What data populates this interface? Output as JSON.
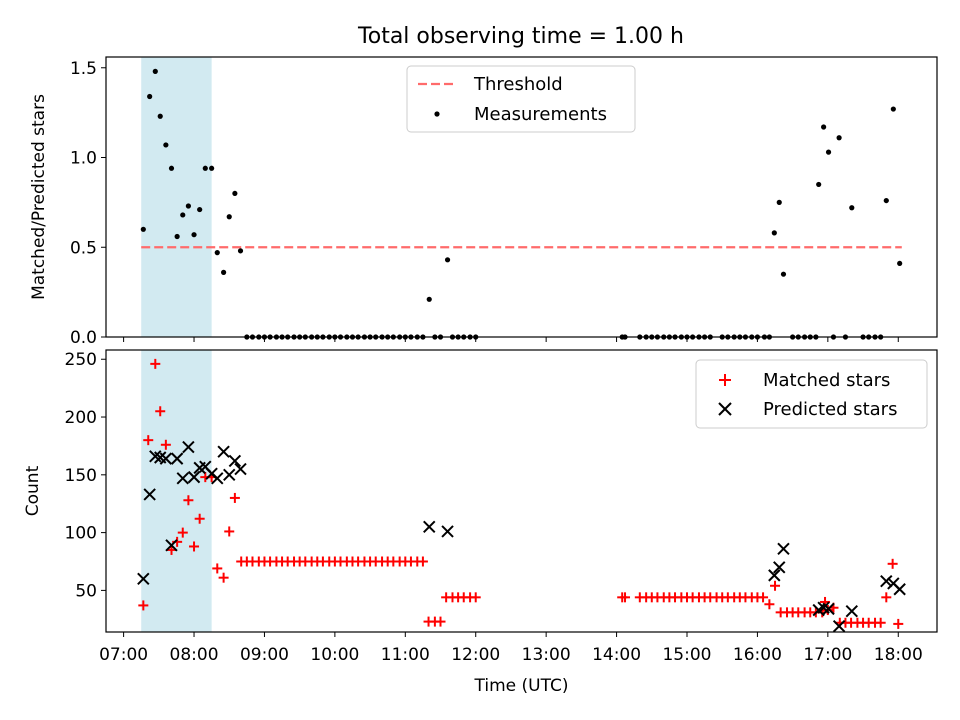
{
  "figure_title": "Total observing time = 1.00 h",
  "colors": {
    "threshold": "#ff6b6b",
    "measurement": "#000000",
    "matched": "#ff0000",
    "predicted": "#000000",
    "shade": "#add8e6"
  },
  "chart_data": [
    {
      "type": "scatter",
      "panel": "top",
      "title": "Total observing time = 1.00 h",
      "xlabel": "",
      "ylabel": "Matched/Predicted stars",
      "xlim": [
        6.75,
        18.55
      ],
      "ylim": [
        0,
        1.56
      ],
      "yticks": [
        0.0,
        0.5,
        1.0,
        1.5
      ],
      "ytick_labels": [
        "0.0",
        "0.5",
        "1.0",
        "1.5"
      ],
      "shaded_x_range": [
        7.25,
        8.25
      ],
      "legend": {
        "placement": "top-center",
        "entries": [
          "Threshold",
          "Measurements"
        ]
      },
      "threshold": {
        "name": "Threshold",
        "y": 0.5,
        "x_range": [
          7.25,
          18.05
        ]
      },
      "series": [
        {
          "name": "Measurements",
          "points": [
            [
              7.28,
              0.6
            ],
            [
              7.37,
              1.34
            ],
            [
              7.45,
              1.48
            ],
            [
              7.52,
              1.23
            ],
            [
              7.6,
              1.07
            ],
            [
              7.68,
              0.94
            ],
            [
              7.76,
              0.56
            ],
            [
              7.84,
              0.68
            ],
            [
              7.92,
              0.73
            ],
            [
              8.0,
              0.57
            ],
            [
              8.08,
              0.71
            ],
            [
              8.16,
              0.94
            ],
            [
              8.25,
              0.94
            ],
            [
              8.33,
              0.47
            ],
            [
              8.42,
              0.36
            ],
            [
              8.5,
              0.67
            ],
            [
              8.58,
              0.8
            ],
            [
              8.66,
              0.48
            ],
            [
              8.75,
              0
            ],
            [
              8.83,
              0
            ],
            [
              8.92,
              0
            ],
            [
              9.0,
              0
            ],
            [
              9.08,
              0
            ],
            [
              9.17,
              0
            ],
            [
              9.25,
              0
            ],
            [
              9.33,
              0
            ],
            [
              9.42,
              0
            ],
            [
              9.5,
              0
            ],
            [
              9.58,
              0
            ],
            [
              9.67,
              0
            ],
            [
              9.75,
              0
            ],
            [
              9.83,
              0
            ],
            [
              9.92,
              0
            ],
            [
              10.0,
              0
            ],
            [
              10.08,
              0
            ],
            [
              10.17,
              0
            ],
            [
              10.25,
              0
            ],
            [
              10.33,
              0
            ],
            [
              10.42,
              0
            ],
            [
              10.5,
              0
            ],
            [
              10.58,
              0
            ],
            [
              10.67,
              0
            ],
            [
              10.75,
              0
            ],
            [
              10.83,
              0
            ],
            [
              10.92,
              0
            ],
            [
              11.0,
              0
            ],
            [
              11.08,
              0
            ],
            [
              11.17,
              0
            ],
            [
              11.25,
              0
            ],
            [
              11.34,
              0.21
            ],
            [
              11.42,
              0
            ],
            [
              11.5,
              0
            ],
            [
              11.6,
              0.43
            ],
            [
              11.67,
              0
            ],
            [
              11.75,
              0
            ],
            [
              11.83,
              0
            ],
            [
              11.92,
              0
            ],
            [
              12.0,
              0
            ],
            [
              14.08,
              0
            ],
            [
              14.12,
              0
            ],
            [
              14.33,
              0
            ],
            [
              14.42,
              0
            ],
            [
              14.5,
              0
            ],
            [
              14.58,
              0
            ],
            [
              14.67,
              0
            ],
            [
              14.75,
              0
            ],
            [
              14.83,
              0
            ],
            [
              14.92,
              0
            ],
            [
              15.0,
              0
            ],
            [
              15.08,
              0
            ],
            [
              15.17,
              0
            ],
            [
              15.25,
              0
            ],
            [
              15.33,
              0
            ],
            [
              15.5,
              0
            ],
            [
              15.58,
              0
            ],
            [
              15.67,
              0
            ],
            [
              15.75,
              0
            ],
            [
              15.83,
              0
            ],
            [
              15.92,
              0
            ],
            [
              16.0,
              0
            ],
            [
              16.1,
              0
            ],
            [
              16.17,
              0
            ],
            [
              16.24,
              0.58
            ],
            [
              16.31,
              0.75
            ],
            [
              16.37,
              0.35
            ],
            [
              16.5,
              0
            ],
            [
              16.58,
              0
            ],
            [
              16.67,
              0
            ],
            [
              16.75,
              0
            ],
            [
              16.83,
              0
            ],
            [
              16.87,
              0.85
            ],
            [
              16.94,
              1.17
            ],
            [
              17.01,
              1.03
            ],
            [
              17.08,
              0
            ],
            [
              17.16,
              1.11
            ],
            [
              17.25,
              0
            ],
            [
              17.34,
              0.72
            ],
            [
              17.5,
              0
            ],
            [
              17.58,
              0
            ],
            [
              17.67,
              0
            ],
            [
              17.75,
              0
            ],
            [
              17.83,
              0.76
            ],
            [
              17.93,
              1.27
            ],
            [
              18.02,
              0.41
            ]
          ]
        }
      ]
    },
    {
      "type": "scatter",
      "panel": "bottom",
      "xlabel": "Time (UTC)",
      "ylabel": "Count",
      "xlim": [
        6.75,
        18.55
      ],
      "ylim": [
        14,
        258
      ],
      "yticks": [
        50,
        100,
        150,
        200,
        250
      ],
      "ytick_labels": [
        "50",
        "100",
        "150",
        "200",
        "250"
      ],
      "xticks": [
        7,
        8,
        9,
        10,
        11,
        12,
        13,
        14,
        15,
        16,
        17,
        18
      ],
      "xtick_labels": [
        "07:00",
        "08:00",
        "09:00",
        "10:00",
        "11:00",
        "12:00",
        "13:00",
        "14:00",
        "15:00",
        "16:00",
        "17:00",
        "18:00"
      ],
      "shaded_x_range": [
        7.25,
        8.25
      ],
      "legend": {
        "placement": "top-right",
        "entries": [
          "Matched stars",
          "Predicted stars"
        ]
      },
      "series": [
        {
          "name": "Matched stars",
          "marker": "+",
          "points": [
            [
              7.28,
              37
            ],
            [
              7.35,
              180
            ],
            [
              7.45,
              246
            ],
            [
              7.52,
              205
            ],
            [
              7.6,
              176
            ],
            [
              7.68,
              85
            ],
            [
              7.76,
              92
            ],
            [
              7.84,
              100
            ],
            [
              7.92,
              128
            ],
            [
              8.0,
              88
            ],
            [
              8.08,
              112
            ],
            [
              8.16,
              148
            ],
            [
              8.25,
              148
            ],
            [
              8.33,
              69
            ],
            [
              8.42,
              61
            ],
            [
              8.5,
              101
            ],
            [
              8.58,
              130
            ],
            [
              8.67,
              75
            ],
            [
              8.75,
              75
            ],
            [
              8.83,
              75
            ],
            [
              8.92,
              75
            ],
            [
              9.0,
              75
            ],
            [
              9.08,
              75
            ],
            [
              9.17,
              75
            ],
            [
              9.25,
              75
            ],
            [
              9.33,
              75
            ],
            [
              9.42,
              75
            ],
            [
              9.5,
              75
            ],
            [
              9.58,
              75
            ],
            [
              9.67,
              75
            ],
            [
              9.75,
              75
            ],
            [
              9.83,
              75
            ],
            [
              9.92,
              75
            ],
            [
              10.0,
              75
            ],
            [
              10.08,
              75
            ],
            [
              10.17,
              75
            ],
            [
              10.25,
              75
            ],
            [
              10.33,
              75
            ],
            [
              10.42,
              75
            ],
            [
              10.5,
              75
            ],
            [
              10.58,
              75
            ],
            [
              10.67,
              75
            ],
            [
              10.75,
              75
            ],
            [
              10.83,
              75
            ],
            [
              10.92,
              75
            ],
            [
              11.0,
              75
            ],
            [
              11.08,
              75
            ],
            [
              11.17,
              75
            ],
            [
              11.25,
              75
            ],
            [
              11.33,
              23
            ],
            [
              11.42,
              23
            ],
            [
              11.5,
              23
            ],
            [
              11.58,
              44
            ],
            [
              11.67,
              44
            ],
            [
              11.75,
              44
            ],
            [
              11.83,
              44
            ],
            [
              11.92,
              44
            ],
            [
              12.0,
              44
            ],
            [
              14.08,
              44
            ],
            [
              14.12,
              44
            ],
            [
              14.33,
              44
            ],
            [
              14.42,
              44
            ],
            [
              14.5,
              44
            ],
            [
              14.58,
              44
            ],
            [
              14.67,
              44
            ],
            [
              14.75,
              44
            ],
            [
              14.83,
              44
            ],
            [
              14.92,
              44
            ],
            [
              15.0,
              44
            ],
            [
              15.08,
              44
            ],
            [
              15.17,
              44
            ],
            [
              15.25,
              44
            ],
            [
              15.33,
              44
            ],
            [
              15.42,
              44
            ],
            [
              15.5,
              44
            ],
            [
              15.58,
              44
            ],
            [
              15.67,
              44
            ],
            [
              15.75,
              44
            ],
            [
              15.83,
              44
            ],
            [
              15.92,
              44
            ],
            [
              16.0,
              44
            ],
            [
              16.08,
              44
            ],
            [
              16.17,
              38
            ],
            [
              16.25,
              54
            ],
            [
              16.33,
              31
            ],
            [
              16.42,
              31
            ],
            [
              16.5,
              31
            ],
            [
              16.58,
              31
            ],
            [
              16.67,
              31
            ],
            [
              16.75,
              31
            ],
            [
              16.83,
              31
            ],
            [
              16.92,
              31
            ],
            [
              16.96,
              40
            ],
            [
              17.0,
              33
            ],
            [
              17.08,
              35
            ],
            [
              17.17,
              22
            ],
            [
              17.25,
              22
            ],
            [
              17.33,
              22
            ],
            [
              17.42,
              22
            ],
            [
              17.5,
              22
            ],
            [
              17.58,
              22
            ],
            [
              17.67,
              22
            ],
            [
              17.75,
              22
            ],
            [
              17.83,
              44
            ],
            [
              17.92,
              73
            ],
            [
              18.0,
              21
            ]
          ]
        },
        {
          "name": "Predicted stars",
          "marker": "x",
          "points": [
            [
              7.28,
              60
            ],
            [
              7.37,
              133
            ],
            [
              7.45,
              166
            ],
            [
              7.52,
              165
            ],
            [
              7.6,
              164
            ],
            [
              7.68,
              89
            ],
            [
              7.76,
              164
            ],
            [
              7.84,
              147
            ],
            [
              7.92,
              174
            ],
            [
              8.0,
              148
            ],
            [
              8.08,
              156
            ],
            [
              8.16,
              157
            ],
            [
              8.25,
              151
            ],
            [
              8.33,
              147
            ],
            [
              8.42,
              170
            ],
            [
              8.5,
              150
            ],
            [
              8.58,
              162
            ],
            [
              8.66,
              155
            ],
            [
              11.34,
              105
            ],
            [
              11.6,
              101
            ],
            [
              16.24,
              63
            ],
            [
              16.31,
              70
            ],
            [
              16.37,
              86
            ],
            [
              16.87,
              33
            ],
            [
              16.94,
              35
            ],
            [
              17.01,
              34
            ],
            [
              17.16,
              19
            ],
            [
              17.34,
              32
            ],
            [
              17.83,
              58
            ],
            [
              17.93,
              56
            ],
            [
              18.02,
              51
            ]
          ]
        }
      ]
    }
  ]
}
